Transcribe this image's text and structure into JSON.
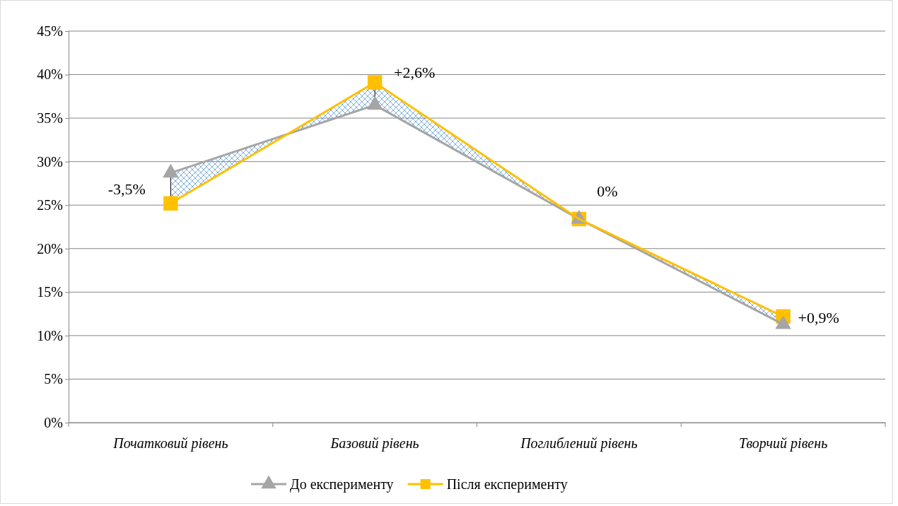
{
  "chart_data": {
    "type": "line",
    "categories": [
      "Початковий рівень",
      "Базовий рівень",
      "Поглиблений рівень",
      "Творчий рівень"
    ],
    "series": [
      {
        "name": "До експерименту",
        "color": "#a5a5a5",
        "marker": "triangle",
        "values": [
          28.7,
          36.5,
          23.4,
          11.3
        ]
      },
      {
        "name": "Після експерименту",
        "color": "#ffc000",
        "marker": "square",
        "values": [
          25.2,
          39.1,
          23.4,
          12.2
        ],
        "lower": [
          28.7,
          36.5,
          23.4,
          11.3
        ],
        "upper": [
          25.2,
          39.1,
          23.4,
          12.2
        ]
      }
    ],
    "ylim": [
      0,
      45
    ],
    "yticks": [
      {
        "value": 0,
        "label": "0%"
      },
      {
        "value": 5,
        "label": "5%"
      },
      {
        "value": 10,
        "label": "10%"
      },
      {
        "value": 15,
        "label": "15%"
      },
      {
        "value": 20,
        "label": "20%"
      },
      {
        "value": 25,
        "label": "25%"
      },
      {
        "value": 30,
        "label": "30%"
      },
      {
        "value": 35,
        "label": "35%"
      },
      {
        "value": 40,
        "label": "40%"
      },
      {
        "value": 45,
        "label": "45%"
      }
    ],
    "grid": "y",
    "legend": "bottom",
    "annotations": [
      {
        "text": "-3,5%",
        "x": "Початковий рівень",
        "y": 26.8
      },
      {
        "text": "+2,6%",
        "x": "Базовий рівень",
        "y": 40.2
      },
      "0%",
      {
        "text": "+0,9%",
        "x": "Творчий рівень",
        "y": 12.0
      }
    ]
  }
}
